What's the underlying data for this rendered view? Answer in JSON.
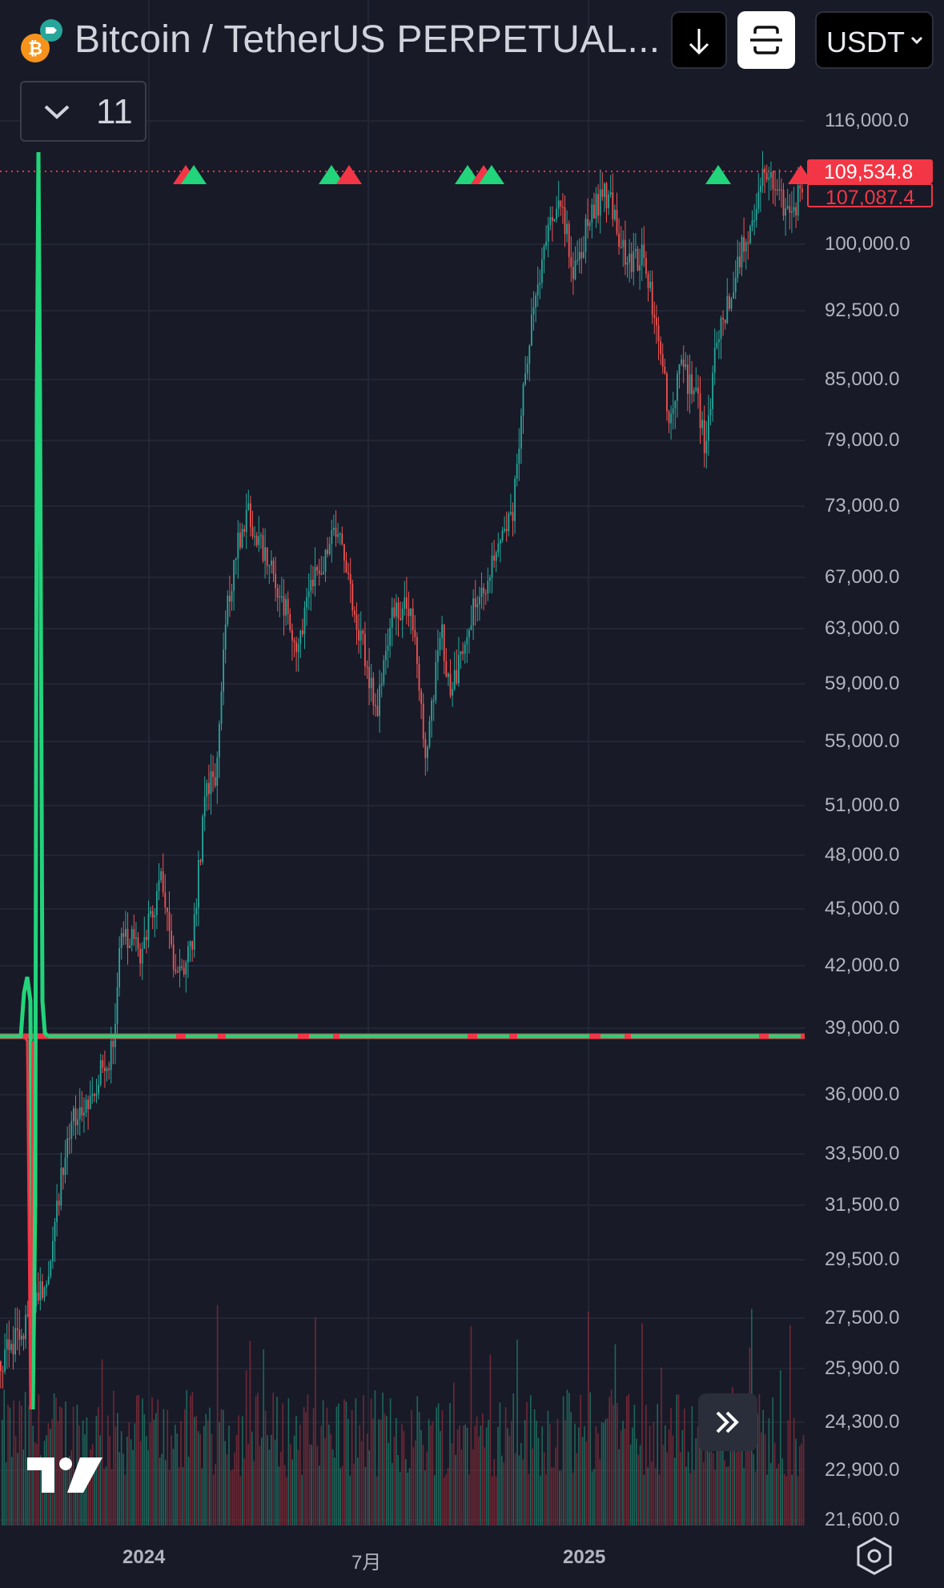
{
  "header": {
    "symbol_title": "Bitcoin / TetherUS PERPETUAL...",
    "currency_label": "USDT",
    "indicator_value": "11"
  },
  "price_scale": [
    "116,000.0",
    "100,000.0",
    "92,500.0",
    "85,000.0",
    "79,000.0",
    "73,000.0",
    "67,000.0",
    "63,000.0",
    "59,000.0",
    "55,000.0",
    "51,000.0",
    "48,000.0",
    "45,000.0",
    "42,000.0",
    "39,000.0",
    "36,000.0",
    "33,500.0",
    "31,500.0",
    "29,500.0",
    "27,500.0",
    "25,900.0",
    "24,300.0",
    "22,900.0",
    "21,600.0"
  ],
  "price_tags": {
    "last": "109,534.8",
    "reference": "107,087.4"
  },
  "time_axis": [
    "2024",
    "7月",
    "2025"
  ],
  "colors": {
    "background": "#181a28",
    "up": "#22d47a",
    "down": "#f23645",
    "grid": "#262a38"
  },
  "icons": {
    "coin": "bitcoin-coin-icon",
    "download": "arrow-down-icon",
    "screenshot": "screenshot-frame-icon",
    "chevron": "chevron-down-icon",
    "scroll": "double-chevron-right-icon",
    "settings": "hexagon-settings-icon",
    "logo": "tradingview-logo-icon"
  }
}
